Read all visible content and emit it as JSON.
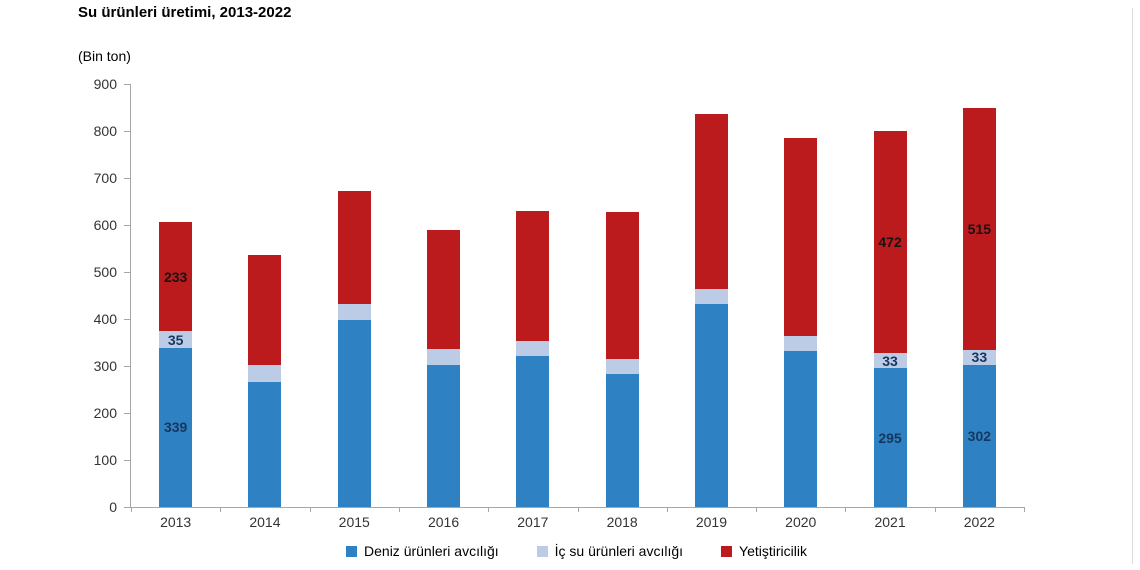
{
  "page": {
    "title": "Su ürünleri üretimi, 2013-2022",
    "unit_label": "(Bin ton)"
  },
  "chart_data": {
    "type": "bar",
    "stacked": true,
    "title": "Su ürünleri üretimi, 2013-2022",
    "ylabel": "(Bin ton)",
    "xlabel": "",
    "ylim": [
      0,
      900
    ],
    "ytick_step": 100,
    "gridlines": false,
    "legend_position": "bottom",
    "categories": [
      "2013",
      "2014",
      "2015",
      "2016",
      "2017",
      "2018",
      "2019",
      "2020",
      "2021",
      "2022"
    ],
    "series": [
      {
        "name": "Deniz ürünleri avcılığı",
        "color": "#2E82C3",
        "label_color": "#17365D",
        "values": [
          339,
          266,
          398,
          302,
          322,
          284,
          432,
          331,
          295,
          302
        ]
      },
      {
        "name": "İç su ürünleri avcılığı",
        "color": "#BCCCE6",
        "label_color": "#17365D",
        "values": [
          35,
          36,
          34,
          34,
          32,
          30,
          32,
          33,
          33,
          33
        ]
      },
      {
        "name": "Yetiştiricilik",
        "color": "#BC1B1E",
        "label_color": "#1A1212",
        "values": [
          233,
          235,
          240,
          253,
          277,
          314,
          373,
          421,
          472,
          515
        ]
      }
    ],
    "labeled_categories": [
      "2013",
      "2021",
      "2022"
    ],
    "axis_color": "#A6A6A6"
  }
}
